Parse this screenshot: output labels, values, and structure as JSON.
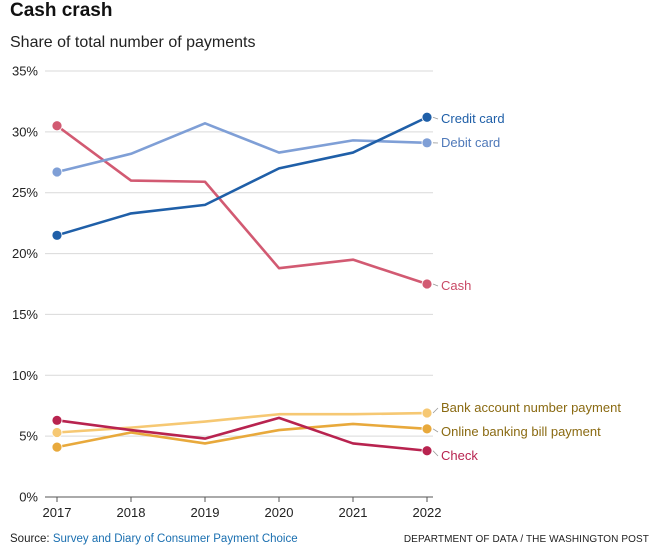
{
  "title": "Cash crash",
  "subtitle": "Share of total number of payments",
  "source_prefix": "Source: ",
  "source_link": "Survey and Diary of Consumer Payment Choice",
  "credit": "DEPARTMENT OF DATA / THE WASHINGTON POST",
  "chart_data": {
    "type": "line",
    "x": [
      "2017",
      "2018",
      "2019",
      "2020",
      "2021",
      "2022"
    ],
    "ylim": [
      0,
      35
    ],
    "yticks": [
      "0%",
      "5%",
      "10%",
      "15%",
      "20%",
      "25%",
      "30%",
      "35%"
    ],
    "ytick_values": [
      0,
      5,
      10,
      15,
      20,
      25,
      30,
      35
    ],
    "grid": true,
    "series": [
      {
        "name": "Credit card",
        "color": "#1f5fa8",
        "label_color": "#1f5fa8",
        "values": [
          21.5,
          23.3,
          24.0,
          27.0,
          28.3,
          31.2
        ]
      },
      {
        "name": "Debit card",
        "color": "#7f9fd6",
        "label_color": "#4f79b9",
        "values": [
          26.7,
          28.2,
          30.7,
          28.3,
          29.3,
          29.1
        ]
      },
      {
        "name": "Cash",
        "color": "#d25a72",
        "label_color": "#c94a66",
        "values": [
          30.5,
          26.0,
          25.9,
          18.8,
          19.5,
          17.5
        ]
      },
      {
        "name": "Bank account number payment",
        "color": "#f6c873",
        "label_color": "#8a6a12",
        "values": [
          5.3,
          5.7,
          6.2,
          6.8,
          6.8,
          6.9
        ]
      },
      {
        "name": "Online banking bill payment",
        "color": "#e8a93c",
        "label_color": "#8a6a12",
        "values": [
          4.1,
          5.3,
          4.4,
          5.5,
          6.0,
          5.6
        ]
      },
      {
        "name": "Check",
        "color": "#b8234f",
        "label_color": "#b8234f",
        "values": [
          6.3,
          5.5,
          4.8,
          6.5,
          4.4,
          3.8
        ]
      }
    ]
  }
}
